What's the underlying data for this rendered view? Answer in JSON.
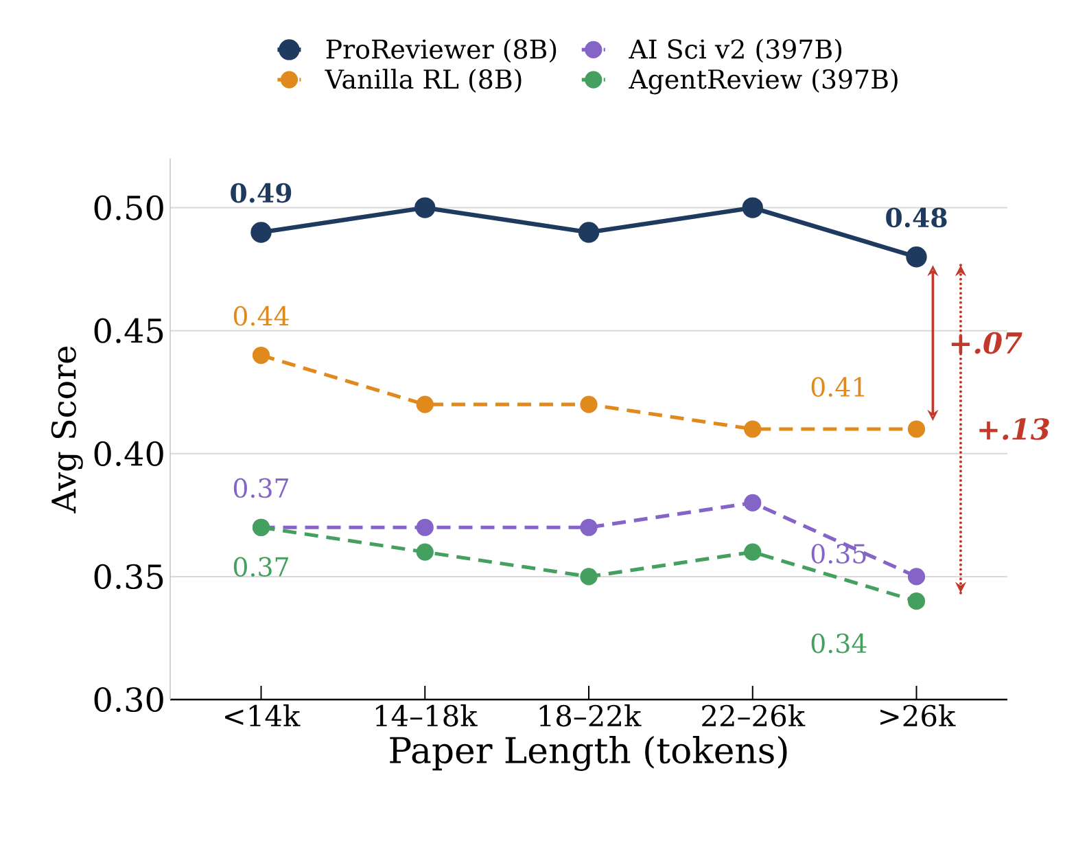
{
  "chart_data": {
    "type": "line",
    "xlabel": "Paper Length (tokens)",
    "ylabel": "Avg Score",
    "categories": [
      "<14k",
      "14–18k",
      "18–22k",
      "22–26k",
      ">26k"
    ],
    "ylim": [
      0.3,
      0.52
    ],
    "yticks": [
      {
        "value": 0.3,
        "label": "0.30"
      },
      {
        "value": 0.35,
        "label": "0.35"
      },
      {
        "value": 0.4,
        "label": "0.40"
      },
      {
        "value": 0.45,
        "label": "0.45"
      },
      {
        "value": 0.5,
        "label": "0.50"
      }
    ],
    "grid": "y",
    "legend": "top",
    "marker": "circle",
    "series": [
      {
        "name": "ProReviewer (8B)",
        "color": "#1f3a5f",
        "line_style": "solid",
        "values": [
          0.49,
          0.5,
          0.49,
          0.5,
          0.48
        ],
        "value_labels": [
          "0.49",
          null,
          null,
          null,
          "0.48"
        ]
      },
      {
        "name": "Vanilla RL (8B)",
        "color": "#e08a1e",
        "line_style": "dashed",
        "values": [
          0.44,
          0.42,
          0.42,
          0.41,
          0.41
        ],
        "value_labels": [
          "0.44",
          null,
          null,
          null,
          "0.41"
        ]
      },
      {
        "name": "AI Sci v2 (397B)",
        "color": "#8464c6",
        "line_style": "dashed",
        "values": [
          0.37,
          0.37,
          0.37,
          0.38,
          0.35
        ],
        "value_labels": [
          "0.37",
          null,
          null,
          null,
          "0.35"
        ]
      },
      {
        "name": "AgentReview (397B)",
        "color": "#45a060",
        "line_style": "dashed",
        "values": [
          0.37,
          0.36,
          0.35,
          0.36,
          0.34
        ],
        "value_labels": [
          "0.37",
          null,
          null,
          null,
          "0.34"
        ]
      }
    ],
    "annotations": [
      "+.07",
      "+.13"
    ]
  }
}
